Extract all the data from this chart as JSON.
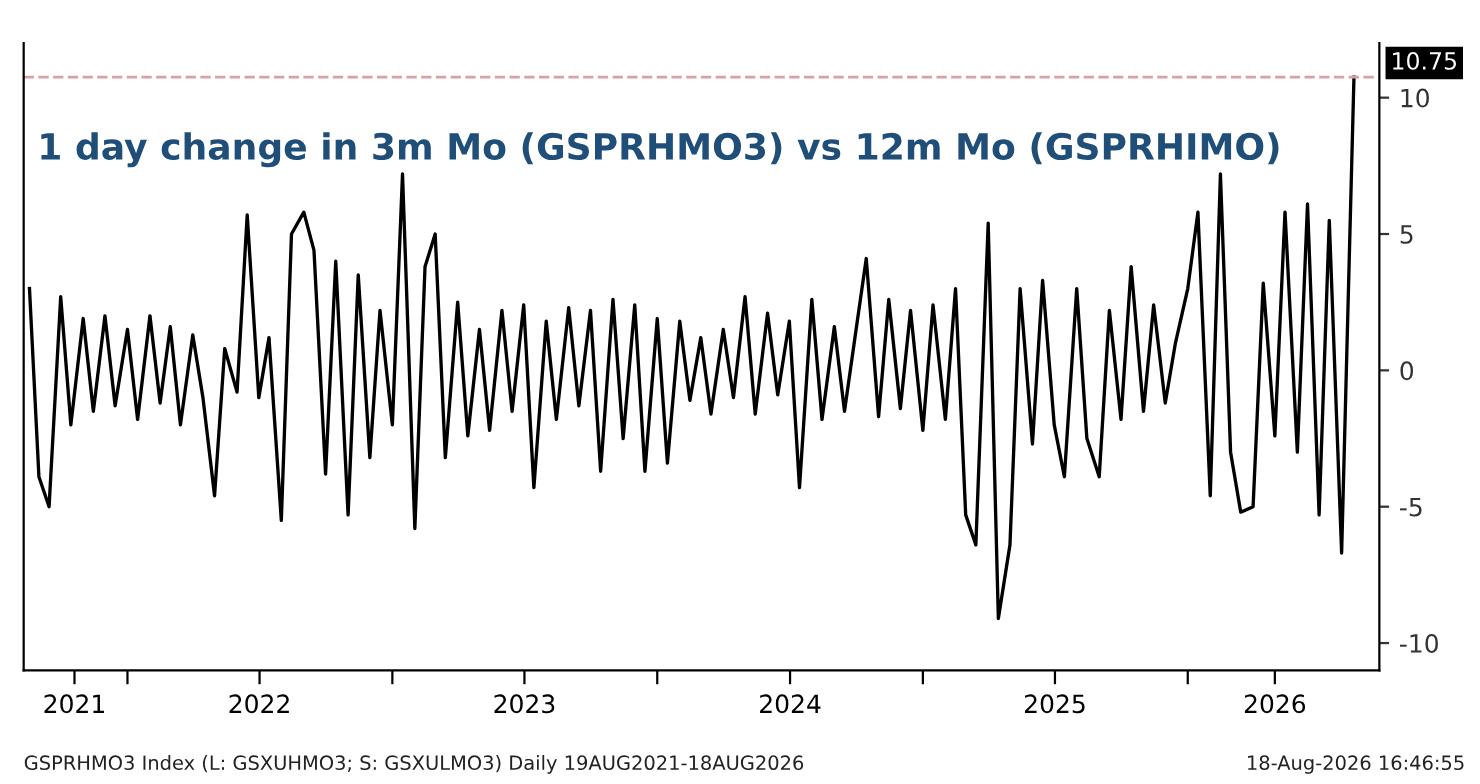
{
  "chart_data": {
    "type": "line",
    "title": "1 day change in 3m Mo (GSPRHMO3) vs 12m Mo (GSPRHIMO)",
    "x": [
      "2021-08-19",
      "2021-09-01",
      "2021-09-15",
      "2021-10-01",
      "2021-10-15",
      "2021-11-01",
      "2021-11-15",
      "2021-12-01",
      "2021-12-15",
      "2022-01-01",
      "2022-01-15",
      "2022-02-01",
      "2022-02-15",
      "2022-03-01",
      "2022-03-15",
      "2022-04-01",
      "2022-04-15",
      "2022-05-01",
      "2022-05-15",
      "2022-06-01",
      "2022-06-15",
      "2022-07-01",
      "2022-07-15",
      "2022-08-01",
      "2022-08-15",
      "2022-09-01",
      "2022-09-15",
      "2022-10-01",
      "2022-10-15",
      "2022-11-01",
      "2022-11-15",
      "2022-12-01",
      "2022-12-15",
      "2023-01-01",
      "2023-01-15",
      "2023-02-01",
      "2023-02-15",
      "2023-03-01",
      "2023-03-15",
      "2023-04-01",
      "2023-04-15",
      "2023-05-01",
      "2023-05-15",
      "2023-06-01",
      "2023-06-15",
      "2023-07-01",
      "2023-07-15",
      "2023-08-01",
      "2023-08-15",
      "2023-09-01",
      "2023-09-15",
      "2023-10-01",
      "2023-10-15",
      "2023-11-01",
      "2023-11-15",
      "2023-12-01",
      "2023-12-15",
      "2024-01-01",
      "2024-01-15",
      "2024-02-01",
      "2024-02-15",
      "2024-03-01",
      "2024-03-15",
      "2024-04-01",
      "2024-04-15",
      "2024-05-01",
      "2024-05-15",
      "2024-06-01",
      "2024-06-15",
      "2024-07-01",
      "2024-07-15",
      "2024-08-01",
      "2024-08-15",
      "2024-09-01",
      "2024-09-15",
      "2024-10-01",
      "2024-10-15",
      "2024-11-01",
      "2024-11-15",
      "2024-12-01",
      "2024-12-15",
      "2025-01-01",
      "2025-01-15",
      "2025-02-01",
      "2025-02-15",
      "2025-03-01",
      "2025-03-15",
      "2025-04-01",
      "2025-04-15",
      "2025-05-01",
      "2025-05-15",
      "2025-06-01",
      "2025-06-15",
      "2025-07-01",
      "2025-07-15",
      "2025-08-01",
      "2025-08-15",
      "2025-09-01",
      "2025-09-15",
      "2025-10-01",
      "2025-10-15",
      "2025-11-01",
      "2025-11-15",
      "2025-12-01",
      "2025-12-15",
      "2026-01-01",
      "2026-01-15",
      "2026-02-01",
      "2026-02-15",
      "2026-03-01",
      "2026-03-15",
      "2026-04-01",
      "2026-04-15",
      "2026-05-01",
      "2026-05-15",
      "2026-06-01",
      "2026-06-15",
      "2026-07-01",
      "2026-07-15",
      "2026-08-01",
      "2026-08-18"
    ],
    "series": [
      {
        "color": "#000000",
        "values": [
          3.0,
          -3.9,
          -5.0,
          2.7,
          -2.0,
          1.9,
          -1.5,
          2.0,
          -1.3,
          1.5,
          -1.8,
          2.0,
          -1.2,
          1.6,
          -2.0,
          1.3,
          -1.0,
          -4.6,
          0.8,
          -0.8,
          5.7,
          -1.0,
          1.2,
          -5.5,
          5.0,
          5.8,
          4.4,
          -3.8,
          4.0,
          -5.3,
          3.5,
          -3.2,
          2.2,
          -2.0,
          7.2,
          -5.8,
          3.8,
          5.0,
          -3.2,
          2.5,
          -2.4,
          1.5,
          -2.2,
          2.2,
          -1.5,
          2.4,
          -4.3,
          1.8,
          -1.8,
          2.3,
          -1.3,
          2.2,
          -3.7,
          2.6,
          -2.5,
          2.4,
          -3.7,
          1.9,
          -3.4,
          1.8,
          -1.1,
          1.2,
          -1.6,
          1.5,
          -1.0,
          2.7,
          -1.6,
          2.1,
          -0.9,
          1.8,
          -4.3,
          2.6,
          -1.8,
          1.6,
          -1.5,
          1.5,
          4.1,
          -1.7,
          2.6,
          -1.4,
          2.2,
          -2.2,
          2.4,
          -1.8,
          3.0,
          -5.3,
          -6.4,
          5.4,
          -9.1,
          -6.4,
          3.0,
          -2.7,
          3.3,
          -2.0,
          -3.9,
          3.0,
          -2.5,
          -3.9,
          2.2,
          -1.8,
          3.8,
          -1.5,
          2.4,
          -1.2,
          1.0,
          3.0,
          5.8,
          -4.6,
          7.2,
          -3.0,
          -5.2,
          -5.0,
          3.2,
          -2.4,
          5.8,
          -3.0,
          6.1,
          -5.3,
          5.5,
          -6.7,
          10.75
        ]
      }
    ],
    "xlim": [
      "2021-08-11",
      "2026-09-22"
    ],
    "xticks": [
      {
        "value": "2022-01-01",
        "label": null
      },
      {
        "value": "2023-01-01",
        "label": null
      },
      {
        "value": "2024-01-01",
        "label": null
      },
      {
        "value": "2025-01-01",
        "label": null
      },
      {
        "value": "2026-01-01",
        "label": null
      },
      {
        "value": "2021-10-20",
        "label": "2021"
      },
      {
        "value": "2022-07-02",
        "label": "2022"
      },
      {
        "value": "2023-07-02",
        "label": "2023"
      },
      {
        "value": "2024-07-02",
        "label": "2024"
      },
      {
        "value": "2025-07-02",
        "label": "2025"
      },
      {
        "value": "2026-05-01",
        "label": "2026"
      }
    ],
    "ylim": [
      -11,
      12
    ],
    "yticks": [
      -10,
      -5,
      0,
      5,
      10
    ],
    "ref_lines": [
      {
        "axis": "y",
        "value": 10.75,
        "label": "10.75",
        "color": "#d9a0a8",
        "line_style": "dashed"
      }
    ],
    "annotations": [
      "GSPRHMO3 Index (L: GSXUHMO3; S: GSXULMO3) Daily 19AUG2021-18AUG2026",
      "18-Aug-2026 16:46:55"
    ],
    "grid": false,
    "legend": false
  }
}
